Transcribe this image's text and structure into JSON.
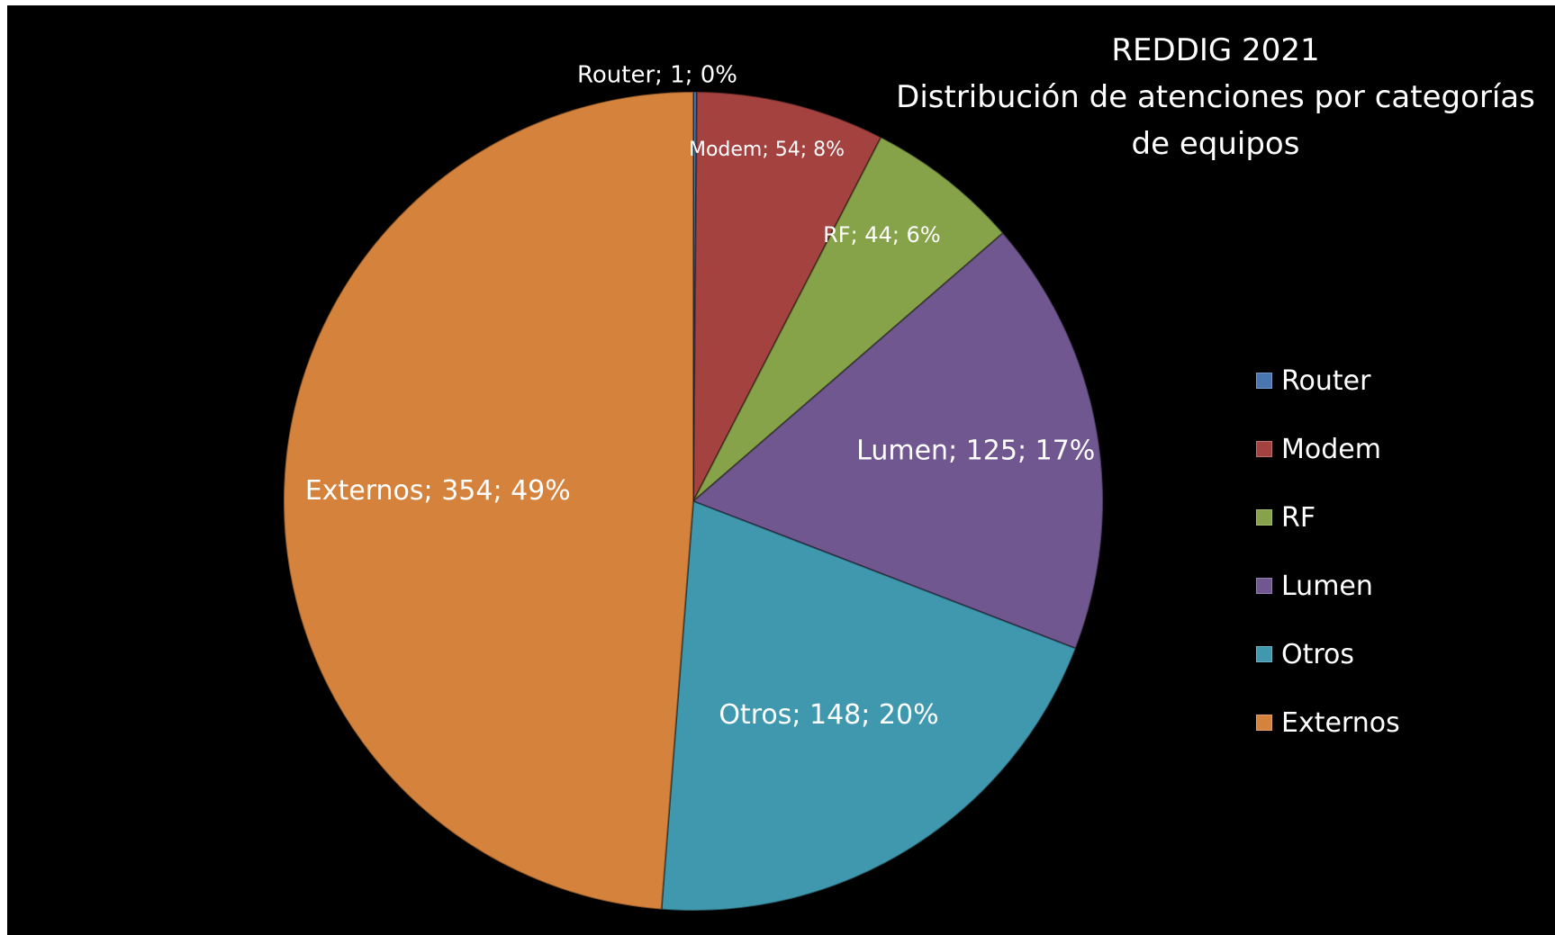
{
  "chart_data": {
    "type": "pie",
    "title_lines": [
      "REDDIG 2021",
      "Distribución de atenciones por categorías",
      "de equipos"
    ],
    "slices": [
      {
        "label": "Router",
        "value": 1,
        "percent": "0%",
        "color": "#4a76b0",
        "data_label": "Router; 1; 0%"
      },
      {
        "label": "Modem",
        "value": 54,
        "percent": "8%",
        "color": "#a3423f",
        "data_label": "Modem; 54; 8%"
      },
      {
        "label": "RF",
        "value": 44,
        "percent": "6%",
        "color": "#87a34a",
        "data_label": "RF; 44; 6%"
      },
      {
        "label": "Lumen",
        "value": 125,
        "percent": "17%",
        "color": "#71578f",
        "data_label": "Lumen; 125; 17%"
      },
      {
        "label": "Otros",
        "value": 148,
        "percent": "20%",
        "color": "#4098ae",
        "data_label": "Otros; 148; 20%"
      },
      {
        "label": "Externos",
        "value": 354,
        "percent": "49%",
        "color": "#d4823c",
        "data_label": "Externos; 354; 49%"
      }
    ],
    "legend": {
      "placement": "right",
      "items": [
        "Router",
        "Modem",
        "RF",
        "Lumen",
        "Otros",
        "Externos"
      ]
    },
    "background_color": "#000000",
    "text_color": "#ffffff"
  }
}
